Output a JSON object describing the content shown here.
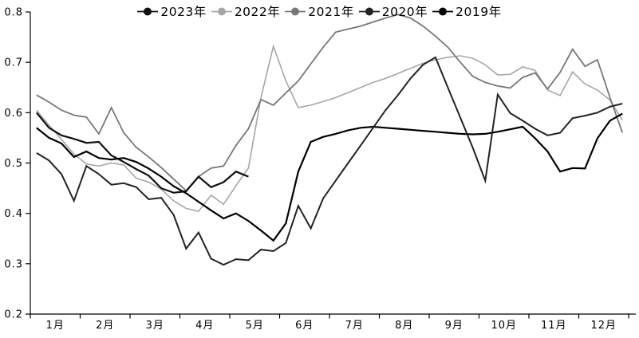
{
  "legend": {
    "items": [
      {
        "label": "2023年",
        "color": "#111111"
      },
      {
        "label": "2022年",
        "color": "#a6a6a6"
      },
      {
        "label": "2021年",
        "color": "#777777"
      },
      {
        "label": "2020年",
        "color": "#222222"
      },
      {
        "label": "2019年",
        "color": "#000000"
      }
    ]
  },
  "chart_data": {
    "type": "line",
    "title": "",
    "xlabel": "",
    "ylabel": "",
    "x_categories": [
      "1月",
      "2月",
      "3月",
      "4月",
      "5月",
      "6月",
      "7月",
      "8月",
      "9月",
      "10月",
      "11月",
      "12月"
    ],
    "points_per_month": 4,
    "ylim": [
      0.2,
      0.8
    ],
    "y_ticks": [
      0.8,
      0.7,
      0.6,
      0.5,
      0.4,
      0.3,
      0.2
    ],
    "grid": false,
    "legend_position": "top-center",
    "series": [
      {
        "name": "2022年",
        "color": "#a6a6a6",
        "width": 1.6,
        "values": [
          0.605,
          0.575,
          0.547,
          0.518,
          0.498,
          0.494,
          0.5,
          0.496,
          0.47,
          0.462,
          0.448,
          0.425,
          0.41,
          0.404,
          0.436,
          0.418,
          0.455,
          0.49,
          0.63,
          0.732,
          0.663,
          0.61,
          0.615,
          0.622,
          0.63,
          0.64,
          0.65,
          0.66,
          0.668,
          0.678,
          0.688,
          0.698,
          0.705,
          0.71,
          0.713,
          0.708,
          0.695,
          0.675,
          0.676,
          0.691,
          0.684,
          0.645,
          0.634,
          0.681,
          0.657,
          0.645,
          0.625,
          0.585
        ]
      },
      {
        "name": "2021年",
        "color": "#777777",
        "width": 1.8,
        "values": [
          0.635,
          0.621,
          0.605,
          0.595,
          0.591,
          0.558,
          0.61,
          0.56,
          0.531,
          0.512,
          0.491,
          0.468,
          0.445,
          0.473,
          0.49,
          0.494,
          0.535,
          0.568,
          0.626,
          0.615,
          0.639,
          0.663,
          0.697,
          0.73,
          0.76,
          0.766,
          0.772,
          0.78,
          0.788,
          0.795,
          0.788,
          0.772,
          0.752,
          0.73,
          0.7,
          0.672,
          0.66,
          0.653,
          0.649,
          0.67,
          0.679,
          0.647,
          0.68,
          0.726,
          0.692,
          0.705,
          0.63,
          0.56
        ]
      },
      {
        "name": "2019年",
        "color": "#000000",
        "width": 2.2,
        "values": [
          0.57,
          0.55,
          0.539,
          0.512,
          0.523,
          0.51,
          0.507,
          0.51,
          0.502,
          0.489,
          0.473,
          0.454,
          0.44,
          0.423,
          0.406,
          0.39,
          0.4,
          0.385,
          0.366,
          0.346,
          0.38,
          0.483,
          0.542,
          0.552,
          0.558,
          0.565,
          0.57,
          0.572,
          0.57,
          0.568,
          0.566,
          0.564,
          0.562,
          0.56,
          0.558,
          0.557,
          0.558,
          0.562,
          0.567,
          0.572,
          0.549,
          0.523,
          0.483,
          0.49,
          0.489,
          0.549,
          0.584,
          0.598
        ]
      },
      {
        "name": "2020年",
        "color": "#222222",
        "width": 2.0,
        "values": [
          0.52,
          0.505,
          0.478,
          0.425,
          0.494,
          0.478,
          0.457,
          0.46,
          0.452,
          0.428,
          0.431,
          0.397,
          0.33,
          0.362,
          0.31,
          0.298,
          0.309,
          0.307,
          0.328,
          0.325,
          0.341,
          0.415,
          0.37,
          0.43,
          0.465,
          0.5,
          0.535,
          0.57,
          0.605,
          0.635,
          0.668,
          0.695,
          0.71,
          0.65,
          0.59,
          0.53,
          0.465,
          0.636,
          0.599,
          0.584,
          0.568,
          0.555,
          0.56,
          0.589,
          0.594,
          0.6,
          0.612,
          0.618
        ]
      },
      {
        "name": "2023年",
        "color": "#111111",
        "width": 2.2,
        "values": [
          0.6,
          0.57,
          0.555,
          0.548,
          0.54,
          0.542,
          0.515,
          0.502,
          0.488,
          0.475,
          0.45,
          0.441,
          0.444,
          0.473,
          0.452,
          0.462,
          0.483,
          0.473
        ]
      }
    ]
  }
}
